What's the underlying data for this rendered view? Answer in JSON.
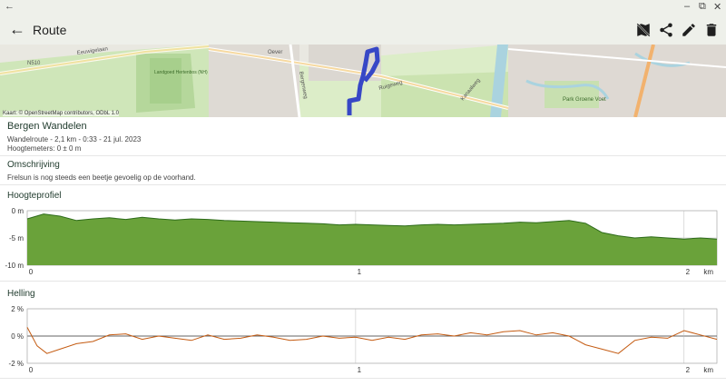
{
  "window": {
    "back_glyph": "←",
    "min_glyph": "–",
    "max_glyph": "⧉",
    "close_glyph": "✕"
  },
  "appbar": {
    "back_glyph": "←",
    "title": "Route",
    "actions": [
      "map-off-icon",
      "share-icon",
      "edit-icon",
      "delete-icon"
    ]
  },
  "map": {
    "attribution": "Kaart: © OpenStreetMap contributors, ODbL 1.0",
    "labels": [
      "N510",
      "Eeuwigelaan",
      "Landgoed Hertenbos (NH)",
      "Oever",
      "Bergenweg",
      "Ruigeweg",
      "Kanaalweg",
      "Park Groene Voet"
    ],
    "route_color": "#3747c6"
  },
  "route": {
    "name": "Bergen Wandelen",
    "details": "Wandelroute - 2,1 km - 0:33 - 21 jul. 2023",
    "elevation": "Hoogtemeters: 0 ± 0 m"
  },
  "description": {
    "heading": "Omschrijving",
    "text": "Frelsun is nog steeds een beetje gevoelig op de voorhand."
  },
  "elevation_heading": "Hoogteprofiel",
  "slope_heading": "Helling",
  "chart_data": [
    {
      "type": "area",
      "title": "Hoogteprofiel",
      "x_ticks": [
        "0",
        "1",
        "2"
      ],
      "x_unit": "km",
      "y_ticks": [
        "0 m",
        "-5 m",
        "-10 m"
      ],
      "ylim": [
        -10,
        0
      ],
      "xlim": [
        0,
        2.1
      ],
      "fill_color": "#6aa23a",
      "line_color": "#2d6b1a",
      "series": [
        {
          "x": [
            0,
            0.05,
            0.1,
            0.15,
            0.2,
            0.25,
            0.3,
            0.35,
            0.4,
            0.45,
            0.5,
            0.55,
            0.6,
            0.65,
            0.7,
            0.75,
            0.8,
            0.85,
            0.9,
            0.95,
            1.0,
            1.05,
            1.1,
            1.15,
            1.2,
            1.25,
            1.3,
            1.35,
            1.4,
            1.45,
            1.5,
            1.55,
            1.6,
            1.65,
            1.7,
            1.75,
            1.8,
            1.85,
            1.9,
            1.95,
            2.0,
            2.05,
            2.1
          ],
          "values": [
            -1.5,
            -0.6,
            -1.0,
            -1.8,
            -1.5,
            -1.3,
            -1.6,
            -1.2,
            -1.5,
            -1.7,
            -1.5,
            -1.6,
            -1.8,
            -1.9,
            -2.0,
            -2.1,
            -2.2,
            -2.3,
            -2.4,
            -2.6,
            -2.5,
            -2.6,
            -2.7,
            -2.8,
            -2.6,
            -2.5,
            -2.6,
            -2.5,
            -2.4,
            -2.3,
            -2.1,
            -2.2,
            -2.0,
            -1.8,
            -2.3,
            -4.0,
            -4.6,
            -5.0,
            -4.8,
            -5.0,
            -5.2,
            -5.0,
            -5.2
          ]
        }
      ]
    },
    {
      "type": "line",
      "title": "Helling",
      "x_ticks": [
        "0",
        "1",
        "2"
      ],
      "x_unit": "km",
      "y_ticks": [
        "2 %",
        "0 %",
        "-2 %"
      ],
      "ylim": [
        -2.5,
        2.5
      ],
      "xlim": [
        0,
        2.1
      ],
      "line_color": "#c45a10",
      "series": [
        {
          "x": [
            0,
            0.03,
            0.06,
            0.1,
            0.15,
            0.2,
            0.25,
            0.3,
            0.35,
            0.4,
            0.45,
            0.5,
            0.55,
            0.6,
            0.65,
            0.7,
            0.75,
            0.8,
            0.85,
            0.9,
            0.95,
            1.0,
            1.05,
            1.1,
            1.15,
            1.2,
            1.25,
            1.3,
            1.35,
            1.4,
            1.45,
            1.5,
            1.55,
            1.6,
            1.65,
            1.7,
            1.75,
            1.8,
            1.85,
            1.9,
            1.95,
            2.0,
            2.05,
            2.1
          ],
          "values": [
            0.8,
            -0.9,
            -1.6,
            -1.2,
            -0.7,
            -0.5,
            0.1,
            0.2,
            -0.3,
            0.0,
            -0.2,
            -0.4,
            0.1,
            -0.3,
            -0.2,
            0.1,
            -0.1,
            -0.4,
            -0.3,
            0.0,
            -0.2,
            -0.1,
            -0.4,
            -0.1,
            -0.3,
            0.1,
            0.2,
            0.0,
            0.3,
            0.1,
            0.4,
            0.5,
            0.1,
            0.3,
            0.0,
            -0.8,
            -1.2,
            -1.6,
            -0.4,
            -0.1,
            -0.2,
            0.5,
            0.1,
            -0.3
          ]
        }
      ]
    }
  ]
}
